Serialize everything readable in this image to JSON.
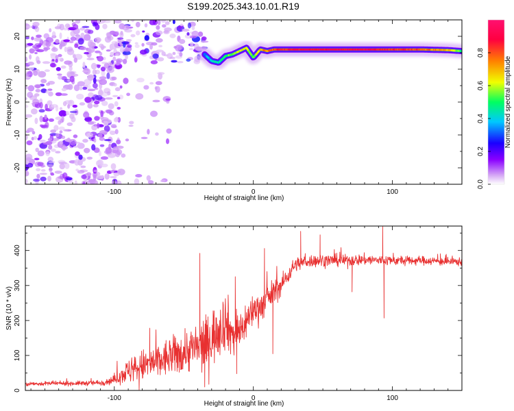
{
  "title": "S199.2025.343.10.01.R19",
  "colors": {
    "snr_line": "#e83030",
    "axis": "#000000",
    "background": "#ffffff"
  },
  "chart_data": [
    {
      "type": "heatmap",
      "name": "spectrogram",
      "xlabel": "Height of straight line (km)",
      "ylabel": "Frequency (Hz)",
      "xlim": [
        -164,
        150
      ],
      "ylim": [
        -25,
        25
      ],
      "x_ticks": [
        -100,
        0,
        100
      ],
      "x_tick_labels": [
        "-100",
        "0",
        "100"
      ],
      "y_ticks": [
        -20,
        -10,
        0,
        10,
        20
      ],
      "y_tick_labels": [
        "-20",
        "-10",
        "0",
        "10",
        "20"
      ],
      "colorbar": {
        "label": "Normalized spectral amplitude",
        "range": [
          0,
          1
        ],
        "ticks": [
          0.0,
          0.2,
          0.4,
          0.6,
          0.8
        ],
        "tick_labels": [
          "0.0",
          "0.2",
          "0.4",
          "0.6",
          "0.8"
        ],
        "colormap": [
          "#ffffff",
          "#d9b0f5",
          "#8a00ff",
          "#1a00ff",
          "#00c8ff",
          "#00ff60",
          "#f0ff00",
          "#ff8000",
          "#ff0040",
          "#ff1070"
        ]
      },
      "ridge": {
        "description": "dominant frequency track",
        "x": [
          -35,
          -30,
          -25,
          -20,
          -15,
          -10,
          -5,
          0,
          5,
          10,
          15,
          20,
          40,
          60,
          80,
          100,
          120,
          140,
          150
        ],
        "y": [
          14.5,
          12.5,
          12,
          14,
          14.5,
          15.5,
          16.5,
          13.5,
          16,
          15.5,
          16,
          16,
          16,
          16,
          16,
          16,
          16,
          15.8,
          15.5
        ],
        "amplitude": [
          0.35,
          0.4,
          0.45,
          0.5,
          0.55,
          0.6,
          0.65,
          0.5,
          0.7,
          0.75,
          0.8,
          0.85,
          0.9,
          0.9,
          0.9,
          0.85,
          0.8,
          0.7,
          0.5
        ]
      },
      "noise_regions": [
        {
          "x": [
            -164,
            -95
          ],
          "y": [
            -25,
            25
          ],
          "amplitude": 0.1,
          "density": "high"
        },
        {
          "x": [
            -95,
            -35
          ],
          "y": [
            12,
            25
          ],
          "amplitude": 0.15,
          "density": "high"
        },
        {
          "x": [
            -95,
            -60
          ],
          "y": [
            -25,
            10
          ],
          "amplitude": 0.05,
          "density": "low"
        }
      ]
    },
    {
      "type": "line",
      "name": "snr",
      "xlabel": "Height of straight line (km)",
      "ylabel": "SNR (10 * v/v)",
      "xlim": [
        -164,
        150
      ],
      "ylim": [
        0,
        470
      ],
      "x_ticks": [
        -100,
        0,
        100
      ],
      "x_tick_labels": [
        "-100",
        "0",
        "100"
      ],
      "y_ticks": [
        0,
        100,
        200,
        300,
        400
      ],
      "y_tick_labels": [
        "0",
        "100",
        "200",
        "300",
        "400"
      ],
      "series": [
        {
          "name": "SNR",
          "x": [
            -164,
            -150,
            -130,
            -110,
            -100,
            -95,
            -90,
            -80,
            -70,
            -60,
            -50,
            -45,
            -40,
            -35,
            -30,
            -25,
            -20,
            -15,
            -10,
            -5,
            0,
            5,
            10,
            15,
            20,
            25,
            30,
            40,
            50,
            60,
            70,
            80,
            90,
            100,
            110,
            120,
            130,
            140,
            150
          ],
          "values": [
            18,
            20,
            20,
            22,
            30,
            45,
            55,
            70,
            80,
            95,
            110,
            120,
            120,
            130,
            150,
            180,
            200,
            160,
            170,
            200,
            230,
            240,
            260,
            285,
            300,
            330,
            360,
            370,
            372,
            372,
            372,
            374,
            372,
            372,
            370,
            372,
            370,
            368,
            368
          ],
          "noise_amplitude": [
            6,
            6,
            6,
            8,
            12,
            25,
            35,
            45,
            50,
            55,
            60,
            65,
            70,
            75,
            80,
            85,
            80,
            70,
            60,
            55,
            45,
            45,
            40,
            35,
            30,
            25,
            20,
            18,
            18,
            17,
            16,
            16,
            15,
            14,
            13,
            12,
            12,
            12,
            12
          ],
          "spikes": [
            {
              "x": -74.5,
              "y": 178
            },
            {
              "x": -38.5,
              "y": 392
            },
            {
              "x": -35,
              "y": 10
            },
            {
              "x": -13,
              "y": 325
            },
            {
              "x": -12,
              "y": 48
            },
            {
              "x": 8,
              "y": 406
            },
            {
              "x": 14,
              "y": 105
            },
            {
              "x": 34,
              "y": 455
            },
            {
              "x": 48,
              "y": 445
            },
            {
              "x": 71,
              "y": 282
            },
            {
              "x": 93,
              "y": 468
            },
            {
              "x": 94,
              "y": 207
            }
          ]
        }
      ]
    }
  ]
}
